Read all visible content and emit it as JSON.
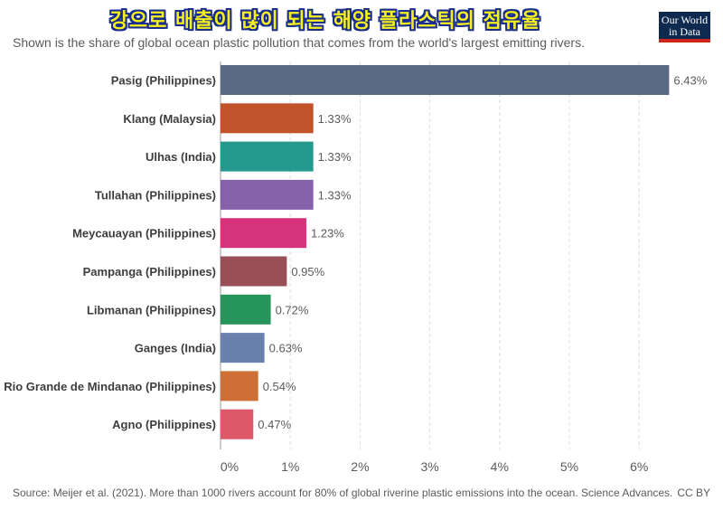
{
  "header": {
    "title": "강으로 배출이 많이 되는 해양 플라스틱의 점유율",
    "subtitle": "Shown is the share of global ocean plastic pollution that comes from the world's largest emitting rivers.",
    "logo_line1": "Our World",
    "logo_line2": "in Data"
  },
  "footer": {
    "source": "Source: Meijer et al. (2021). More than 1000 rivers account for 80% of global riverine plastic emissions into the ocean. Science Advances.",
    "license": "CC BY"
  },
  "chart_data": {
    "type": "bar",
    "orientation": "horizontal",
    "categories": [
      "Pasig (Philippines)",
      "Klang (Malaysia)",
      "Ulhas (India)",
      "Tullahan (Philippines)",
      "Meycauayan (Philippines)",
      "Pampanga (Philippines)",
      "Libmanan (Philippines)",
      "Ganges (India)",
      "Rio Grande de Mindanao (Philippines)",
      "Agno (Philippines)"
    ],
    "values": [
      6.43,
      1.33,
      1.33,
      1.33,
      1.23,
      0.95,
      0.72,
      0.63,
      0.54,
      0.47
    ],
    "value_labels": [
      "6.43%",
      "1.33%",
      "1.33%",
      "1.33%",
      "1.23%",
      "0.95%",
      "0.72%",
      "0.63%",
      "0.54%",
      "0.47%"
    ],
    "colors": [
      "#5a6a82",
      "#c0532a",
      "#26998f",
      "#8660a8",
      "#d6337a",
      "#984f55",
      "#279459",
      "#6a80ad",
      "#cd6f37",
      "#dd5868"
    ],
    "xticks": [
      0,
      1,
      2,
      3,
      4,
      5,
      6
    ],
    "xtick_labels": [
      "0%",
      "1%",
      "2%",
      "3%",
      "4%",
      "5%",
      "6%"
    ],
    "xlim": [
      0,
      6.5
    ],
    "grid": true,
    "legend": "none"
  }
}
